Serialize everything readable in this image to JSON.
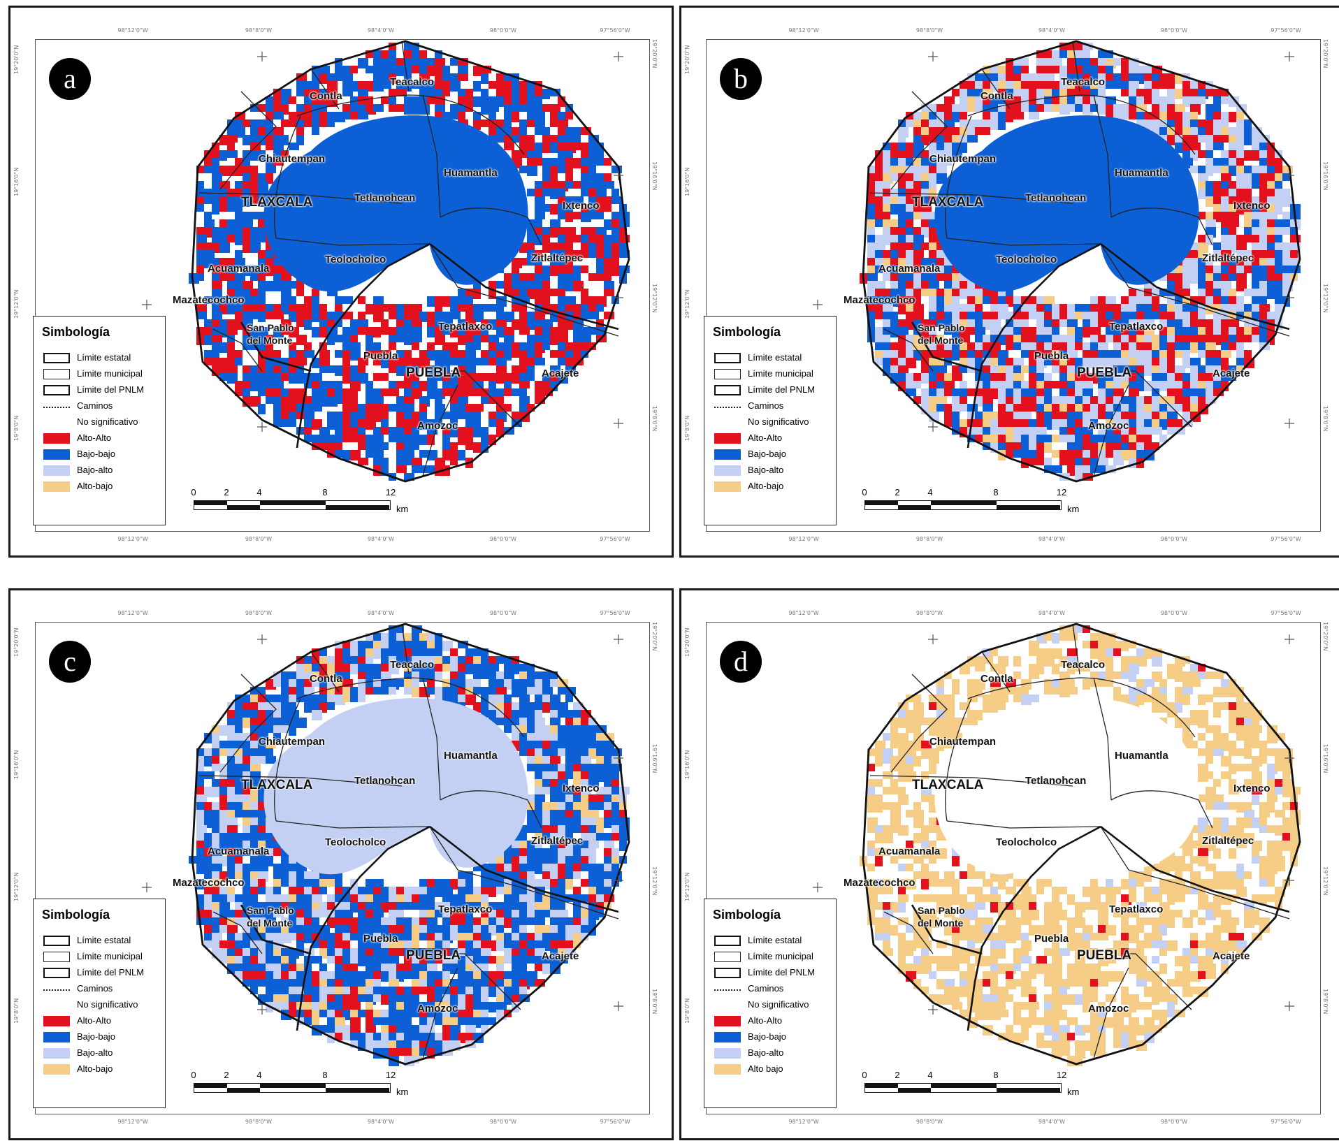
{
  "colors": {
    "alto_alto": "#e3101d",
    "bajo_bajo": "#0c5fd4",
    "bajo_alto": "#c3d0f4",
    "alto_bajo": "#f6cd86",
    "no_significativo": "#ffffff"
  },
  "coordinates": {
    "top": [
      "98°12'0\"W",
      "98°8'0\"W",
      "98°4'0\"W",
      "98°0'0\"W",
      "97°56'0\"W"
    ],
    "bottom": [
      "98°12'0\"W",
      "98°8'0\"W",
      "98°4'0\"W",
      "98°0'0\"W",
      "97°56'0\"W"
    ],
    "left": [
      "19°20'0\"N",
      "19°16'0\"N",
      "19°12'0\"N",
      "19°8'0\"N"
    ],
    "right": [
      "19°20'0\"N",
      "19°16'0\"N",
      "19°12'0\"N",
      "19°8'0\"N"
    ]
  },
  "scale": {
    "ticks": [
      "0",
      "2",
      "4",
      "8",
      "12"
    ],
    "unit": "km"
  },
  "panels": [
    {
      "letter": "a",
      "places": {
        "contla": "Contla",
        "teacalco": "Teacalco",
        "chiautempan": "Chiautempan",
        "huamantla": "Huamantla",
        "tetlanohcan": "Tetlanohcan",
        "tlaxcala": "TLAXCALA",
        "ixtenco": "Ixtenco",
        "teolocholco": "Teolocholco",
        "zitlaltepec": "Zitlaltépec",
        "acuamanala": "Acuamanala",
        "mazatecochco": "Mazatecochco",
        "san_pablo": "San Pablo",
        "del_monte": "del Monte",
        "tepatlaxco": "Tepatlaxco",
        "puebla_muni": "Puebla",
        "puebla_state": "PUEBLA",
        "acajete": "Acajete",
        "amozoc": "Amozoc"
      },
      "legend": {
        "title": "Simbología",
        "limite_estatal": "Límite estatal",
        "limite_municipal": "Límite municipal",
        "limite_pnlm": "Límite del PNLM",
        "caminos": "Caminos",
        "no_significativo": "No significativo",
        "alto_alto": "Alto-Alto",
        "bajo_bajo": "Bajo-bajo",
        "bajo_alto": "Bajo-alto",
        "alto_bajo": "Alto-bajo"
      }
    },
    {
      "letter": "b",
      "places": {
        "contla": "Contla",
        "teacalco": "Teacalco",
        "chiautempan": "Chiautempan",
        "huamantla": "Huamantla",
        "tetlanohcan": "Tetlanohcan",
        "tlaxcala": "TLAXCALA",
        "ixtenco": "Ixtenco",
        "teolocholco": "Teolocholco",
        "zitlaltepec": "Zitlaltépec",
        "acuamanala": "Acuamanala",
        "mazatecochco": "Mazatecochco",
        "san_pablo": "San Pablo",
        "del_monte": "del Monte",
        "tepatlaxco": "Tepatlaxco",
        "puebla_muni": "Puebla",
        "puebla_state": "PUEBLA",
        "acajete": "Acajete",
        "amozoc": "Amozoc"
      },
      "legend": {
        "title": "Simbología",
        "limite_estatal": "Límite estatal",
        "limite_municipal": "Límite municipal",
        "limite_pnlm": "Límite del PNLM",
        "caminos": "Caminos",
        "no_significativo": "No significativo",
        "alto_alto": "Alto-Alto",
        "bajo_bajo": "Bajo-bajo",
        "bajo_alto": "Bajo-alto",
        "alto_bajo": "Alto-bajo"
      }
    },
    {
      "letter": "c",
      "places": {
        "contla": "Contla",
        "teacalco": "Teacalco",
        "chiautempan": "Chiautempan",
        "huamantla": "Huamantla",
        "tetlanohcan": "Tetlanohcan",
        "tlaxcala": "TLAXCALA",
        "ixtenco": "Ixtenco",
        "teolocholco": "Teolocholco",
        "zitlaltepec": "Zitlaltépec",
        "acuamanala": "Acuamanala",
        "mazatecochco": "Mazatecochco",
        "san_pablo": "San Pablo",
        "del_monte": "del Monte",
        "tepatlaxco": "Tepatlaxco",
        "puebla_muni": "Puebla",
        "puebla_state": "PUEBLA",
        "acajete": "Acajete",
        "amozoc": "Amozoc"
      },
      "legend": {
        "title": "Simbología",
        "limite_estatal": "Límite estatal",
        "limite_municipal": "Límite municipal",
        "limite_pnlm": "Límite del PNLM",
        "caminos": "Caminos",
        "no_significativo": "No significativo",
        "alto_alto": "Alto-Alto",
        "bajo_bajo": "Bajo-bajo",
        "bajo_alto": "Bajo-alto",
        "alto_bajo": "Alto-bajo"
      }
    },
    {
      "letter": "d",
      "places": {
        "contla": "Contla",
        "teacalco": "Teacalco",
        "chiautempan": "Chiautempan",
        "huamantla": "Huamantla",
        "tetlanohcan": "Tetlanohcan",
        "tlaxcala": "TLAXCALA",
        "ixtenco": "Ixtenco",
        "teolocholco": "Teolocholco",
        "zitlaltepec": "Zitlaltépec",
        "acuamanala": "Acuamanala",
        "mazatecochco": "Mazatecochco",
        "san_pablo": "San Pablo",
        "del_monte": "del Monte",
        "tepatlaxco": "Tepatlaxco",
        "puebla_muni": "Puebla",
        "puebla_state": "PUEBLA",
        "acajete": "Acajete",
        "amozoc": "Amozoc"
      },
      "legend": {
        "title": "Simbología",
        "limite_estatal": "Límite estatal",
        "limite_municipal": "Límite municipal",
        "limite_pnlm": "Límite del PNLM",
        "caminos": "Caminos",
        "no_significativo": "No significativo",
        "alto_alto": "Alto-Alto",
        "bajo_bajo": "Bajo-bajo",
        "bajo_alto": "Bajo-alto",
        "alto_bajo": "Alto bajo"
      }
    }
  ]
}
